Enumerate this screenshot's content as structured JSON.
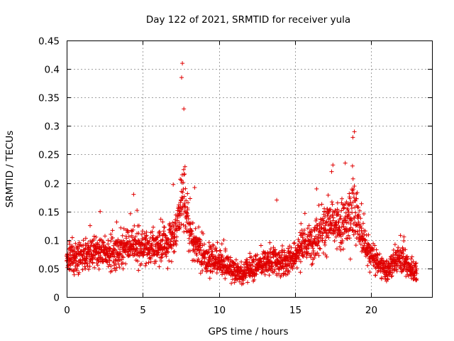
{
  "chart_data": {
    "type": "scatter",
    "title": "Day 122 of 2021, SRMTID for receiver yula",
    "xlabel": "GPS time / hours",
    "ylabel": "SRMTID / TECUs",
    "xlim": [
      0,
      24
    ],
    "ylim": [
      0,
      0.45
    ],
    "x_ticks": [
      "0",
      "5",
      "10",
      "15",
      "20"
    ],
    "y_ticks": [
      "0",
      "0.05",
      "0.1",
      "0.15",
      "0.2",
      "0.25",
      "0.3",
      "0.35",
      "0.4",
      "0.45"
    ],
    "grid": true,
    "marker": "+",
    "color": "#e00000",
    "series": [
      {
        "name": "SRMTID",
        "profile_hours": [
          0,
          1,
          2,
          3,
          4,
          5,
          6,
          7,
          7.3,
          7.6,
          7.9,
          8.3,
          9,
          10,
          11,
          11.5,
          12,
          13,
          13.7,
          14,
          14.5,
          15,
          16,
          16.7,
          17.3,
          18,
          18.3,
          18.6,
          18.9,
          19.3,
          20,
          20.5,
          21,
          21.5,
          22,
          22.5,
          23
        ],
        "profile_tecu": [
          0.065,
          0.072,
          0.078,
          0.075,
          0.09,
          0.085,
          0.09,
          0.1,
          0.14,
          0.19,
          0.14,
          0.1,
          0.07,
          0.06,
          0.045,
          0.04,
          0.05,
          0.06,
          0.065,
          0.06,
          0.065,
          0.075,
          0.095,
          0.12,
          0.13,
          0.12,
          0.13,
          0.14,
          0.16,
          0.11,
          0.07,
          0.06,
          0.045,
          0.06,
          0.07,
          0.05,
          0.045
        ],
        "peaks": [
          {
            "x": 7.6,
            "y": 0.41
          },
          {
            "x": 7.55,
            "y": 0.385
          },
          {
            "x": 7.7,
            "y": 0.33
          },
          {
            "x": 18.9,
            "y": 0.29
          },
          {
            "x": 18.8,
            "y": 0.28
          },
          {
            "x": 18.3,
            "y": 0.235
          },
          {
            "x": 4.4,
            "y": 0.18
          },
          {
            "x": 2.2,
            "y": 0.15
          },
          {
            "x": 13.8,
            "y": 0.17
          }
        ],
        "sampling_interval_hours": 0.02,
        "points_per_sample": 2,
        "x_end": 23.0
      }
    ]
  }
}
